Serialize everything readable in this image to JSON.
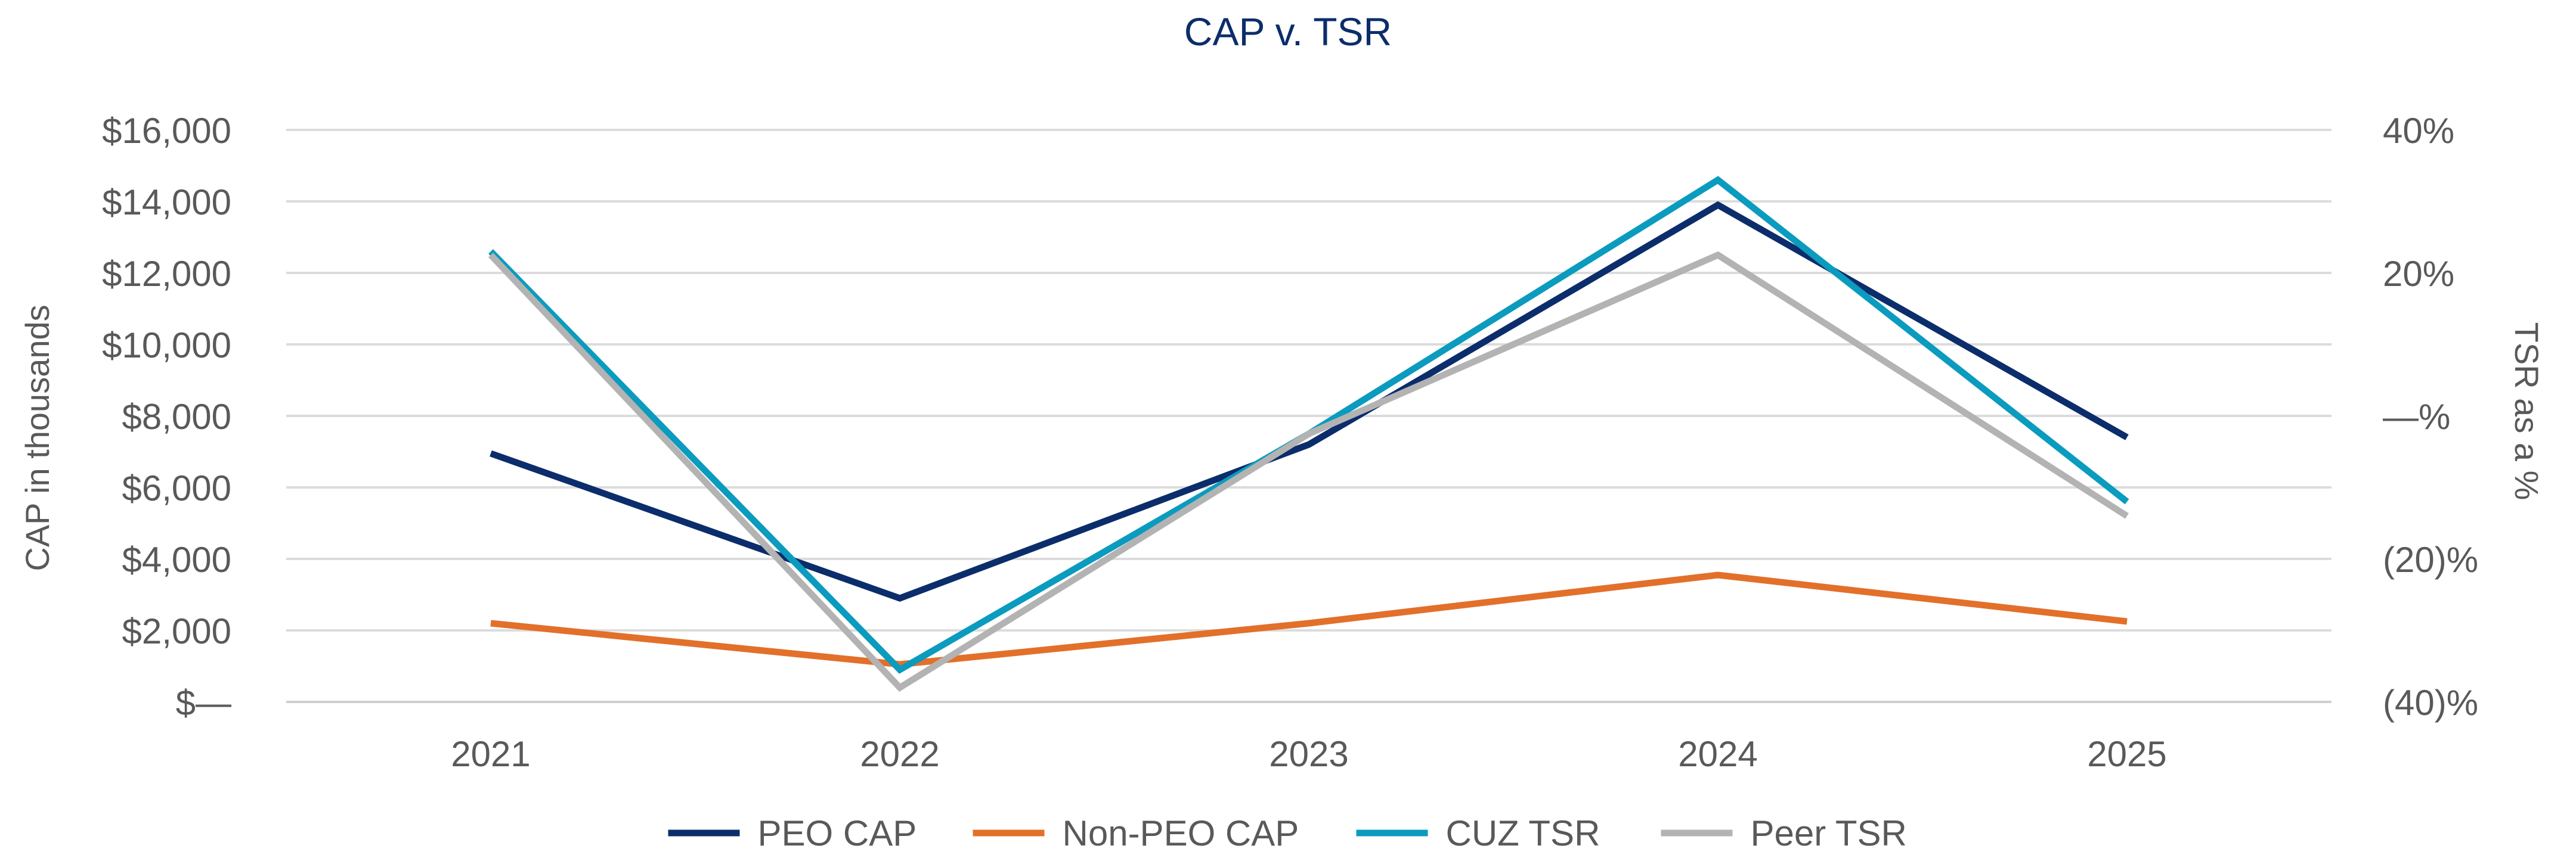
{
  "chart_data": {
    "type": "line",
    "title": "CAP v. TSR",
    "ylabel": "CAP in thousands",
    "y2label": "TSR as a %",
    "categories": [
      "2021",
      "2022",
      "2023",
      "2024",
      "2025"
    ],
    "ylim": [
      0,
      16000
    ],
    "y2lim": [
      -40,
      40
    ],
    "yticks": [
      "$—",
      "$2,000",
      "$4,000",
      "$6,000",
      "$8,000",
      "$10,000",
      "$12,000",
      "$14,000",
      "$16,000"
    ],
    "y2ticks": [
      "(40)%",
      "(20)%",
      "—%",
      "20%",
      "40%"
    ],
    "grid": true,
    "legend_position": "bottom",
    "series": [
      {
        "name": "PEO CAP",
        "axis": "left",
        "color": "#0c2d6b",
        "values": [
          6950,
          2900,
          7200,
          13900,
          7400
        ]
      },
      {
        "name": "Non-PEO CAP",
        "axis": "left",
        "color": "#e2702a",
        "values": [
          2200,
          1050,
          2200,
          3550,
          2250
        ]
      },
      {
        "name": "CUZ TSR",
        "axis": "right",
        "color": "#0b9bbf",
        "values": [
          23,
          -35.5,
          -2.5,
          33,
          -12
        ]
      },
      {
        "name": "Peer TSR",
        "axis": "right",
        "color": "#b3b3b3",
        "values": [
          22.5,
          -38,
          -2.5,
          22.5,
          -14
        ]
      }
    ]
  }
}
